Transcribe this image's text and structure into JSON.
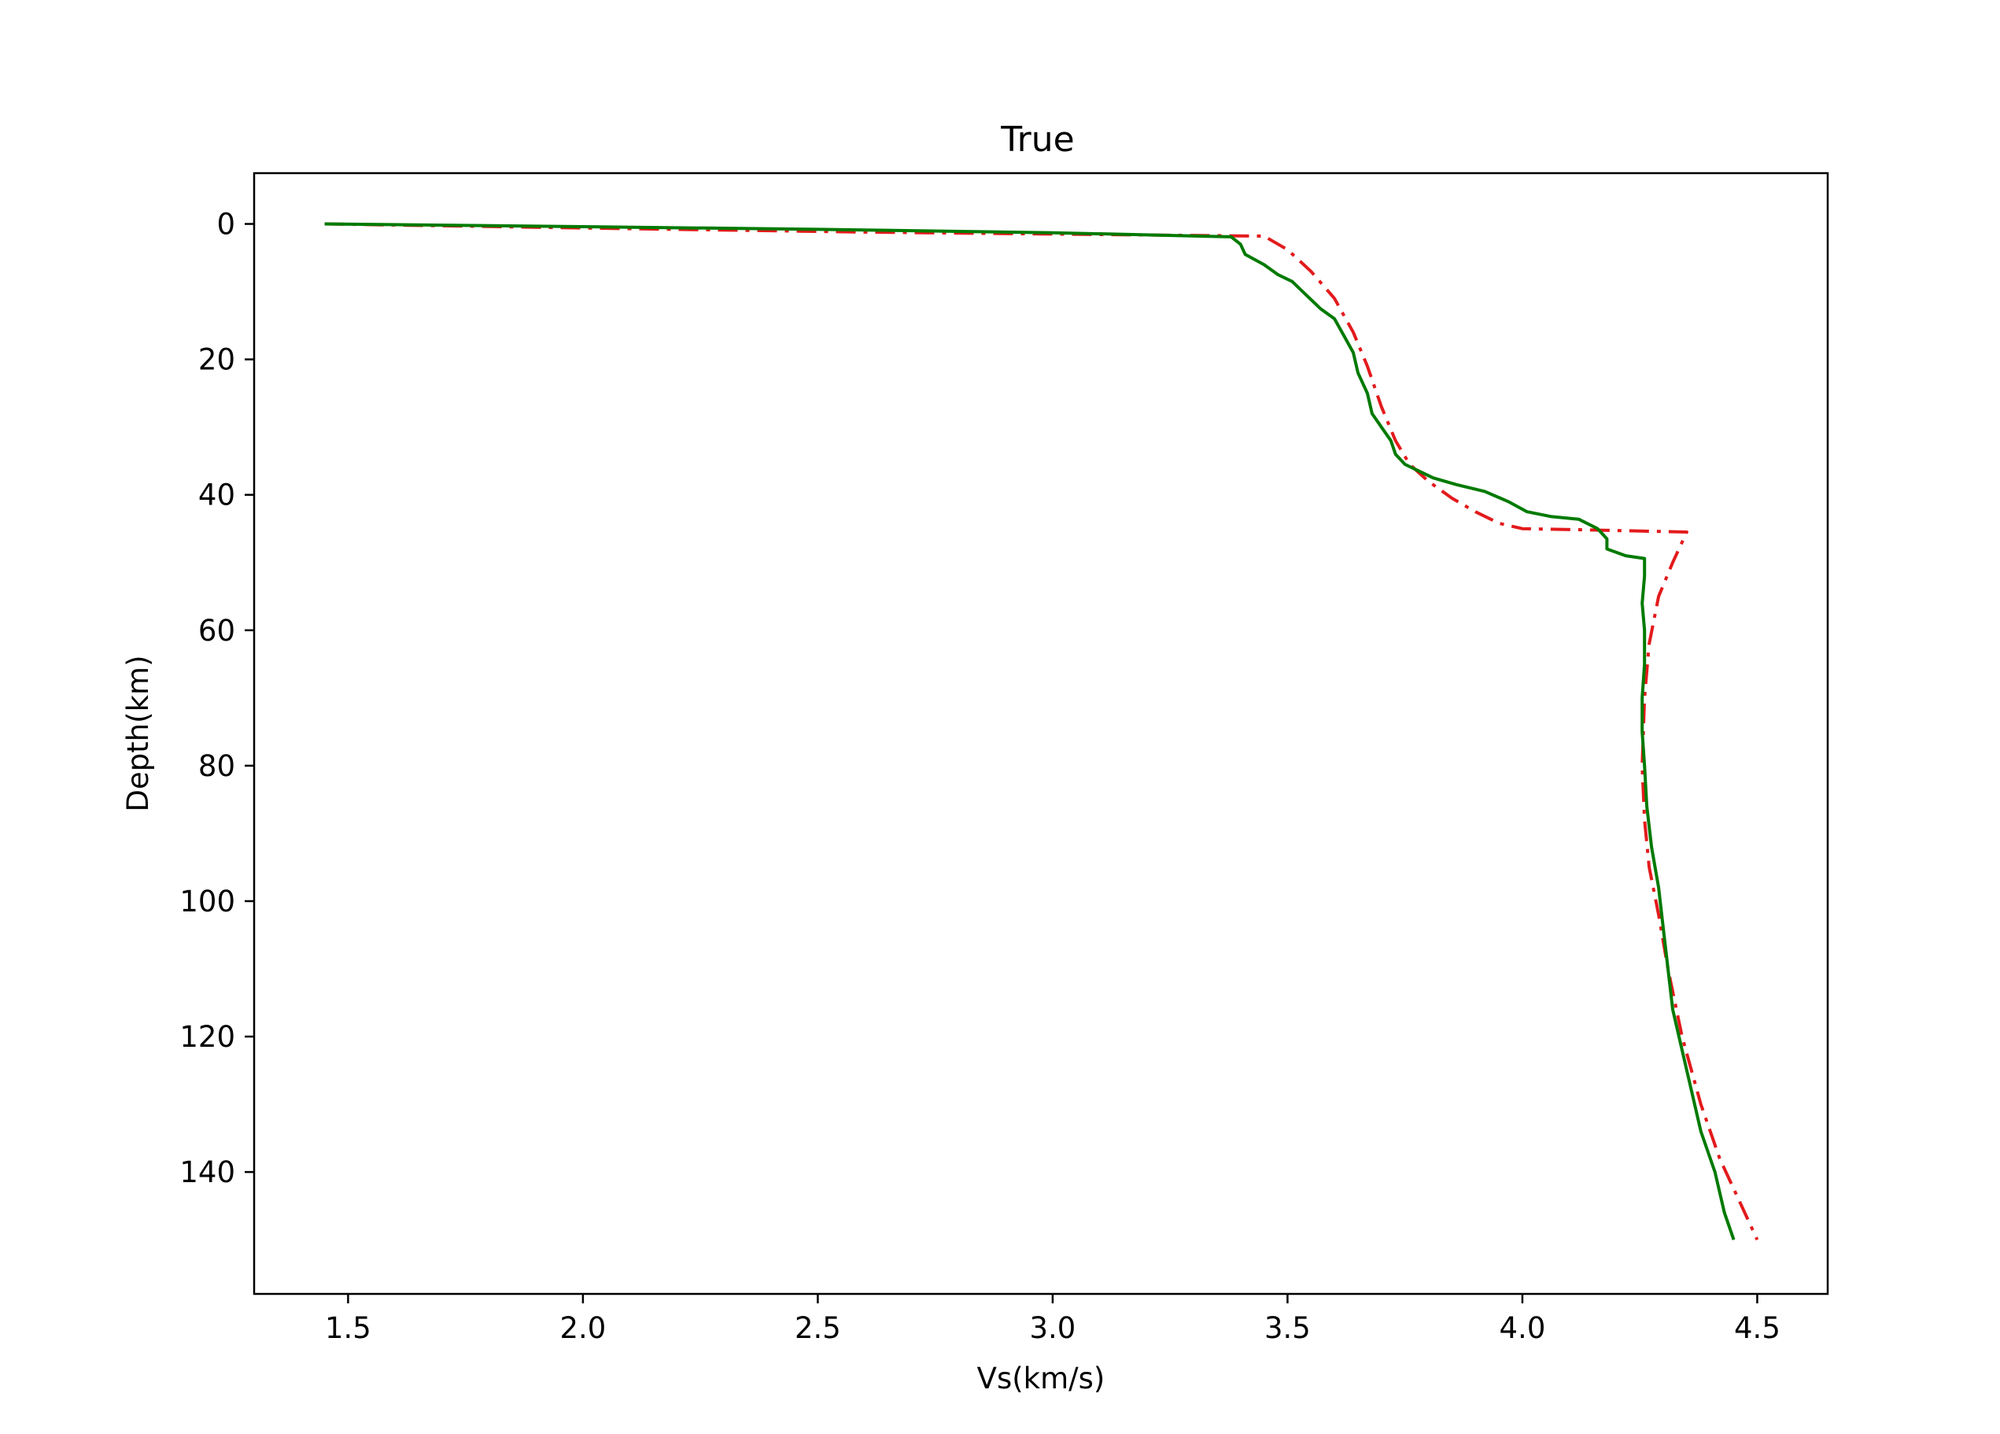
{
  "chart_data": {
    "type": "line",
    "title": "True",
    "xlabel": "Vs(km/s)",
    "ylabel": "Depth(km)",
    "xlim": [
      1.3,
      4.65
    ],
    "ylim": [
      158,
      -7.5
    ],
    "y_inverted": true,
    "grid": false,
    "legend": "none",
    "xticks": [
      {
        "value": 1.5,
        "label": "1.5"
      },
      {
        "value": 2.0,
        "label": "2.0"
      },
      {
        "value": 2.5,
        "label": "2.5"
      },
      {
        "value": 3.0,
        "label": "3.0"
      },
      {
        "value": 3.5,
        "label": "3.5"
      },
      {
        "value": 4.0,
        "label": "4.0"
      },
      {
        "value": 4.5,
        "label": "4.5"
      }
    ],
    "yticks": [
      {
        "value": 0,
        "label": "0"
      },
      {
        "value": 20,
        "label": "20"
      },
      {
        "value": 40,
        "label": "40"
      },
      {
        "value": 60,
        "label": "60"
      },
      {
        "value": 80,
        "label": "80"
      },
      {
        "value": 100,
        "label": "100"
      },
      {
        "value": 120,
        "label": "120"
      },
      {
        "value": 140,
        "label": "140"
      }
    ],
    "series": [
      {
        "style": "dashdot",
        "color": "#e31a1c",
        "points": [
          [
            1.45,
            0.0
          ],
          [
            2.0,
            0.6
          ],
          [
            2.6,
            1.2
          ],
          [
            3.0,
            1.5
          ],
          [
            3.45,
            1.8
          ],
          [
            3.5,
            3.8
          ],
          [
            3.55,
            7.0
          ],
          [
            3.6,
            11.0
          ],
          [
            3.64,
            16.0
          ],
          [
            3.67,
            21.0
          ],
          [
            3.7,
            27.0
          ],
          [
            3.73,
            32.0
          ],
          [
            3.76,
            35.5
          ],
          [
            3.8,
            38.0
          ],
          [
            3.85,
            40.5
          ],
          [
            3.9,
            42.5
          ],
          [
            3.95,
            44.2
          ],
          [
            4.0,
            45.0
          ],
          [
            4.15,
            45.2
          ],
          [
            4.35,
            45.5
          ],
          [
            4.32,
            50.0
          ],
          [
            4.29,
            55.0
          ],
          [
            4.27,
            62.0
          ],
          [
            4.26,
            70.0
          ],
          [
            4.255,
            80.0
          ],
          [
            4.26,
            88.0
          ],
          [
            4.27,
            95.0
          ],
          [
            4.29,
            102.0
          ],
          [
            4.31,
            110.0
          ],
          [
            4.34,
            120.0
          ],
          [
            4.38,
            130.0
          ],
          [
            4.42,
            138.0
          ],
          [
            4.46,
            144.0
          ],
          [
            4.5,
            150.0
          ]
        ]
      },
      {
        "style": "solid",
        "color": "#007a00",
        "points": [
          [
            1.45,
            0.0
          ],
          [
            2.0,
            0.4
          ],
          [
            2.5,
            0.8
          ],
          [
            3.0,
            1.3
          ],
          [
            3.38,
            1.9
          ],
          [
            3.4,
            3.0
          ],
          [
            3.41,
            4.5
          ],
          [
            3.45,
            6.0
          ],
          [
            3.48,
            7.5
          ],
          [
            3.51,
            8.5
          ],
          [
            3.54,
            10.5
          ],
          [
            3.57,
            12.5
          ],
          [
            3.6,
            14.0
          ],
          [
            3.62,
            16.5
          ],
          [
            3.64,
            19.0
          ],
          [
            3.65,
            22.0
          ],
          [
            3.67,
            25.0
          ],
          [
            3.68,
            28.0
          ],
          [
            3.7,
            30.0
          ],
          [
            3.72,
            32.0
          ],
          [
            3.73,
            34.0
          ],
          [
            3.75,
            35.5
          ],
          [
            3.78,
            36.5
          ],
          [
            3.81,
            37.5
          ],
          [
            3.86,
            38.5
          ],
          [
            3.92,
            39.5
          ],
          [
            3.97,
            41.0
          ],
          [
            4.01,
            42.5
          ],
          [
            4.06,
            43.2
          ],
          [
            4.12,
            43.6
          ],
          [
            4.16,
            45.0
          ],
          [
            4.18,
            46.5
          ],
          [
            4.18,
            48.0
          ],
          [
            4.22,
            49.0
          ],
          [
            4.26,
            49.4
          ],
          [
            4.26,
            52.0
          ],
          [
            4.255,
            56.0
          ],
          [
            4.26,
            60.0
          ],
          [
            4.26,
            65.0
          ],
          [
            4.255,
            70.0
          ],
          [
            4.255,
            75.0
          ],
          [
            4.26,
            80.0
          ],
          [
            4.265,
            86.0
          ],
          [
            4.275,
            92.0
          ],
          [
            4.29,
            98.0
          ],
          [
            4.3,
            104.0
          ],
          [
            4.31,
            110.0
          ],
          [
            4.32,
            116.0
          ],
          [
            4.34,
            122.0
          ],
          [
            4.36,
            128.0
          ],
          [
            4.38,
            134.0
          ],
          [
            4.41,
            140.0
          ],
          [
            4.43,
            146.0
          ],
          [
            4.45,
            150.0
          ]
        ]
      }
    ]
  }
}
